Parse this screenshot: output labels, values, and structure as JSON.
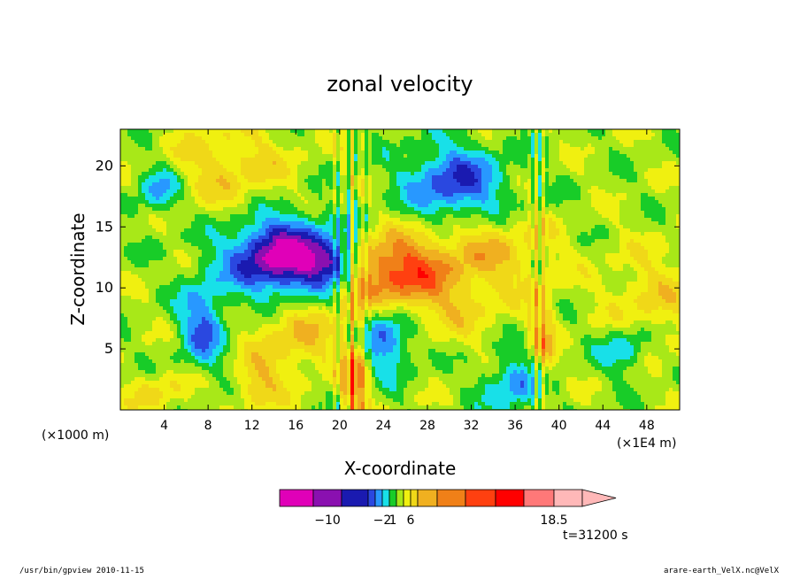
{
  "chart_data": {
    "type": "heatmap",
    "title": "zonal velocity",
    "xlabel": "X-coordinate",
    "ylabel": "Z-coordinate",
    "x_unit": "(×1000 m)",
    "x_multiplier": "(×1E4 m)",
    "xlim": [
      0,
      51
    ],
    "ylim": [
      0,
      23
    ],
    "x_ticks": [
      4,
      8,
      12,
      16,
      20,
      24,
      28,
      32,
      36,
      40,
      44,
      48
    ],
    "y_ticks": [
      5,
      10,
      15,
      20
    ],
    "colorbar": {
      "colors": [
        "#e000b8",
        "#8a10b0",
        "#1a1ab0",
        "#2a48e0",
        "#2898ff",
        "#18e0e8",
        "#18cc28",
        "#a8e818",
        "#f0f010",
        "#f0d818",
        "#f0b020",
        "#f08018",
        "#ff4010",
        "#ff0000",
        "#ff7878",
        "#ffb8b8"
      ],
      "tick_labels": [
        {
          "label": "−10",
          "at": 1.5
        },
        {
          "label": "−2",
          "at": 5
        },
        {
          "label": "1",
          "at": 6.5
        },
        {
          "label": "6",
          "at": 9
        },
        {
          "label": "18.5",
          "at": 15
        }
      ]
    },
    "annotation": "t=31200 s"
  },
  "footer": {
    "left": "/usr/bin/gpview   2010-11-15",
    "right": "arare-earth_VelX.nc@VelX"
  }
}
